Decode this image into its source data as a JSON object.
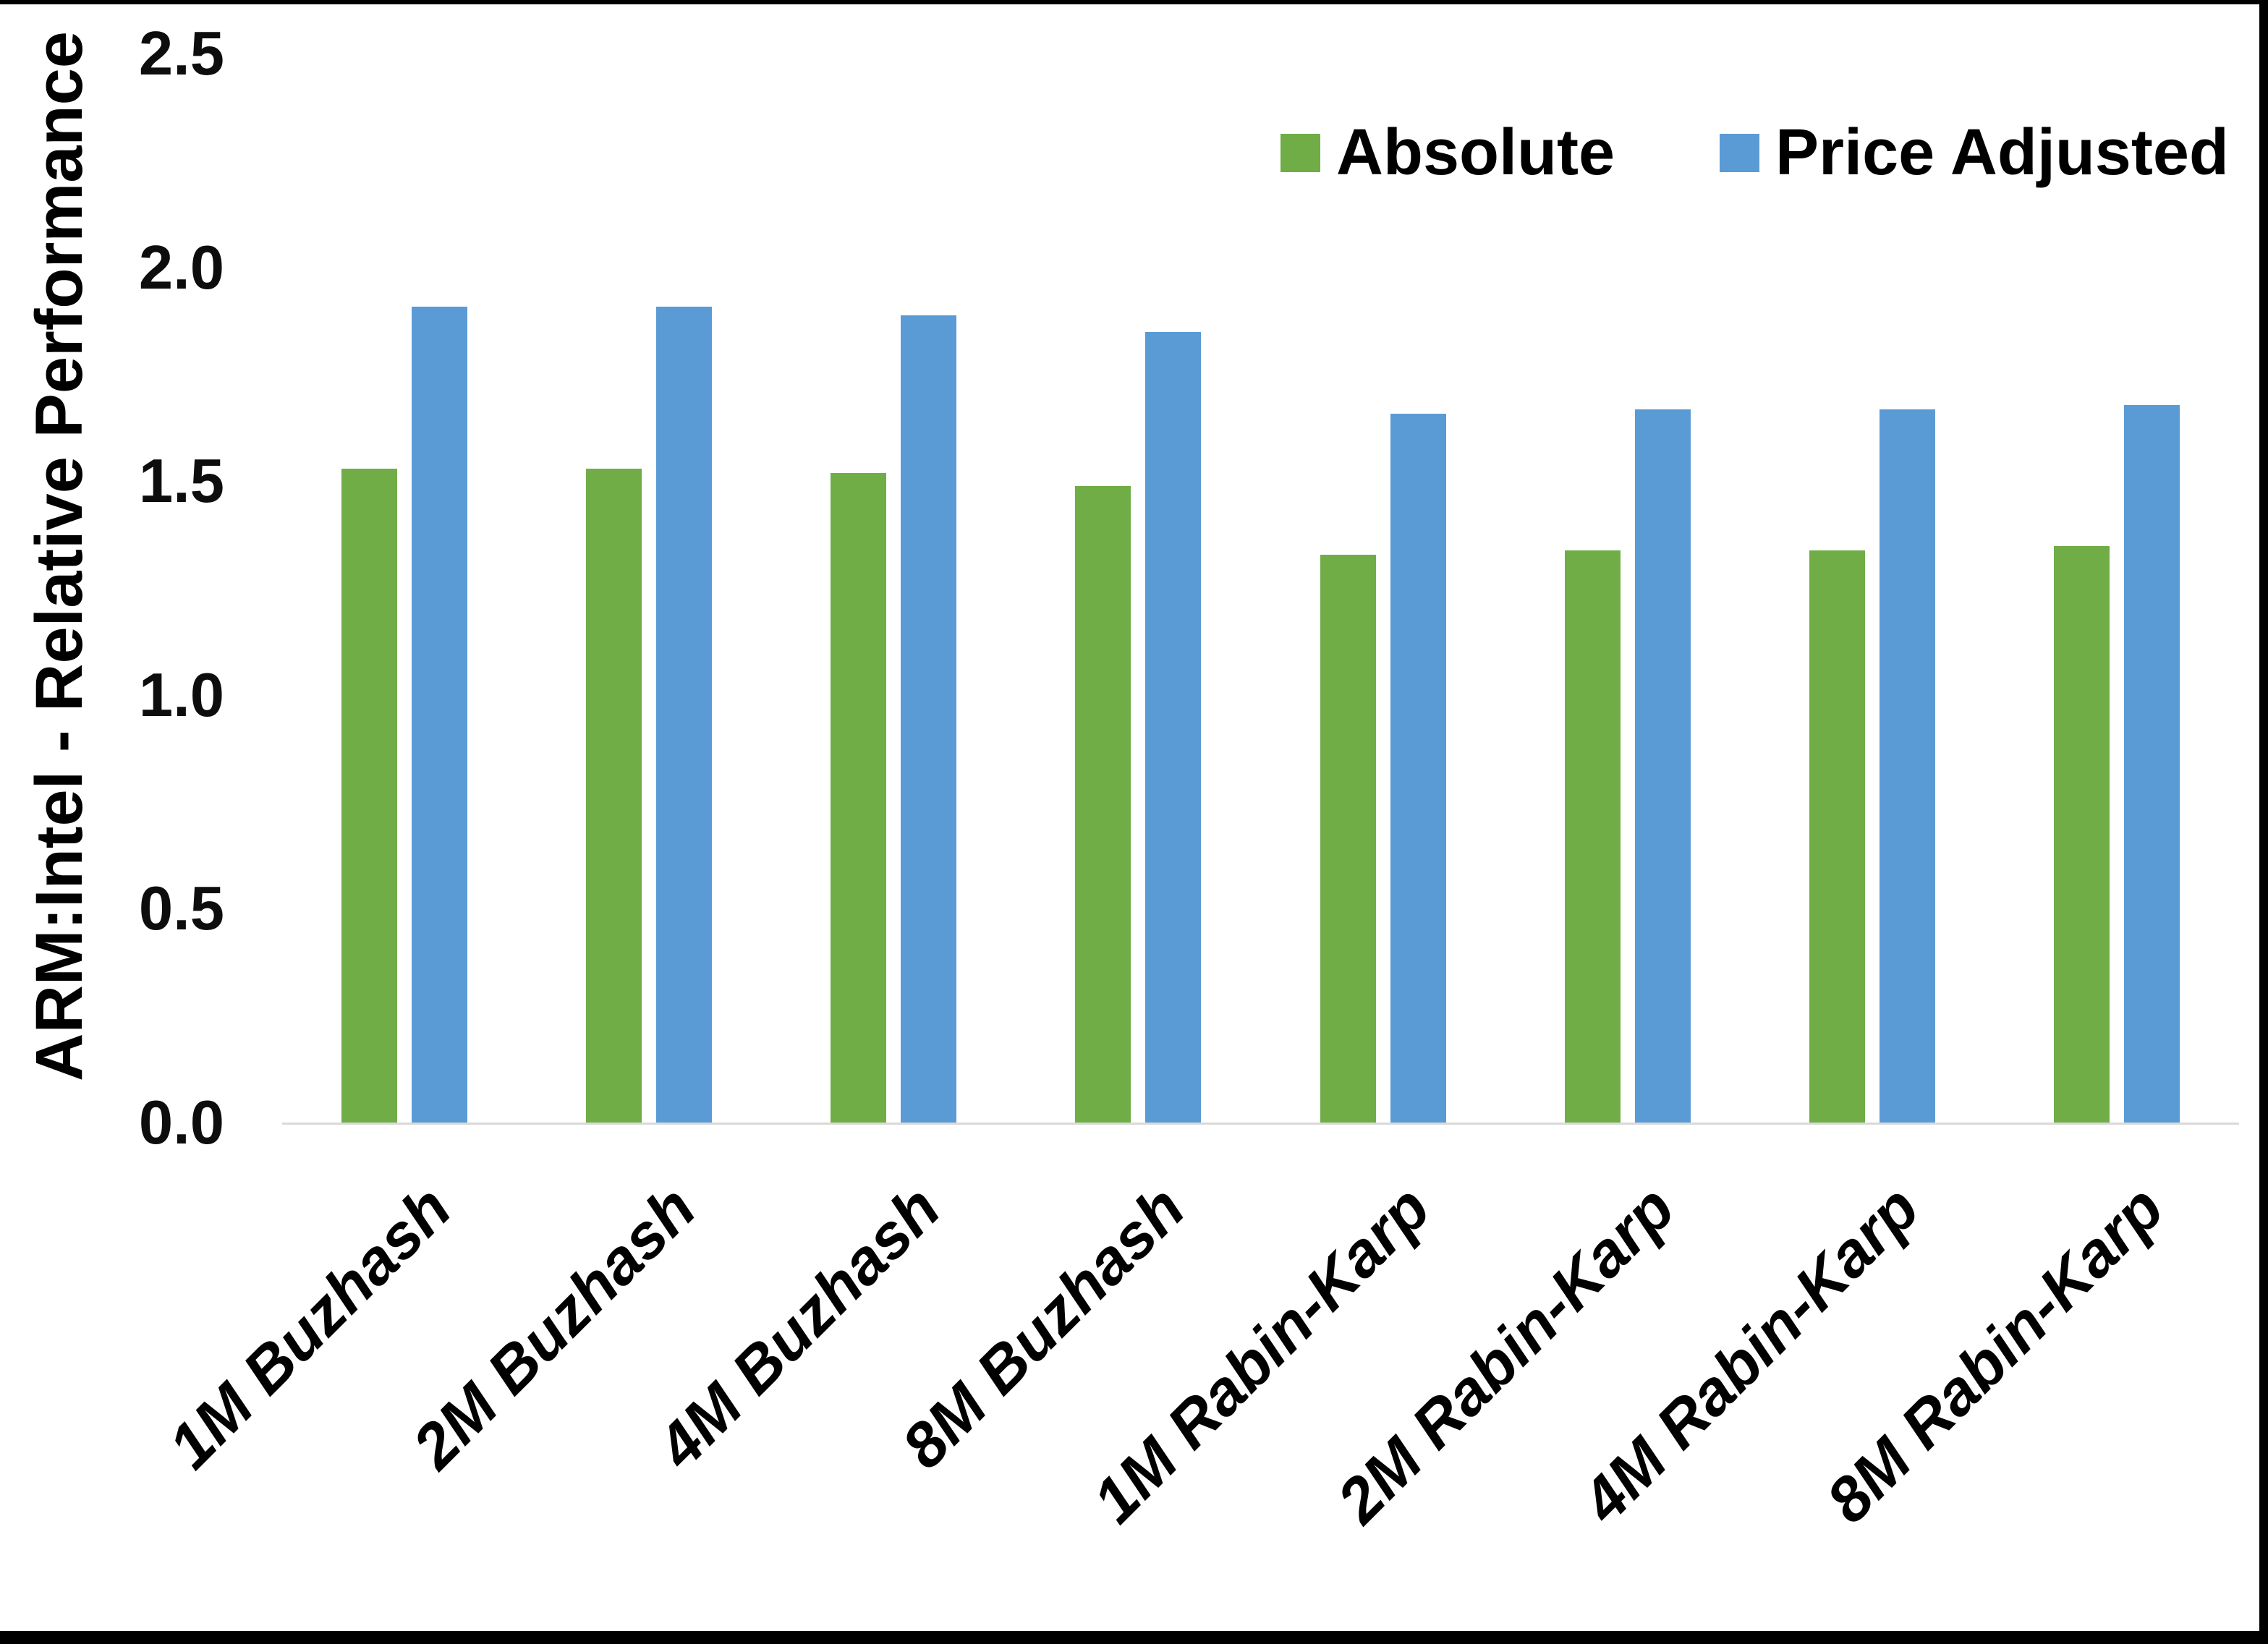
{
  "chart_data": {
    "type": "bar",
    "title": "",
    "xlabel": "",
    "ylabel": "ARM:Intel - Relative Performance",
    "ylim": [
      0,
      2.5
    ],
    "ytick_labels": [
      "0.0",
      "0.5",
      "1.0",
      "1.5",
      "2.0",
      "2.5"
    ],
    "ytick_values": [
      0,
      0.5,
      1,
      1.5,
      2,
      2.5
    ],
    "grid": false,
    "legend_position": "top-right",
    "categories": [
      "1M Buzhash",
      "2M Buzhash",
      "4M Buzhash",
      "8M Buzhash",
      "1M Rabin-Karp",
      "2M Rabin-Karp",
      "4M Rabin-Karp",
      "8M Rabin-Karp"
    ],
    "series": [
      {
        "name": "Absolute",
        "color": "#70AD47",
        "values": [
          1.53,
          1.53,
          1.52,
          1.49,
          1.33,
          1.34,
          1.34,
          1.35
        ]
      },
      {
        "name": "Price Adjusted",
        "color": "#5B9BD5",
        "values": [
          1.91,
          1.91,
          1.89,
          1.85,
          1.66,
          1.67,
          1.67,
          1.68
        ]
      }
    ],
    "axis_line_color": "#D9D9D9",
    "text_color": "#000000"
  }
}
